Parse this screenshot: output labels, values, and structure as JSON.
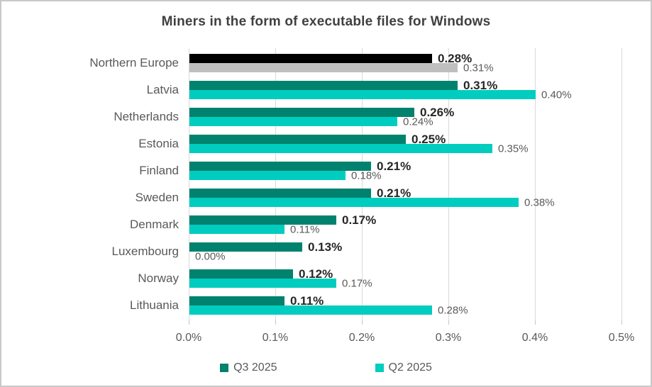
{
  "title": "Miners in the form of executable files for Windows",
  "chart_data": {
    "type": "bar",
    "orientation": "horizontal",
    "title": "Miners in the form of executable files for Windows",
    "categories": [
      "Northern Europe",
      "Latvia",
      "Netherlands",
      "Estonia",
      "Finland",
      "Sweden",
      "Denmark",
      "Luxembourg",
      "Norway",
      "Lithuania"
    ],
    "series": [
      {
        "name": "Q3 2025",
        "legend_color": "#00826E",
        "values": [
          0.28,
          0.31,
          0.26,
          0.25,
          0.21,
          0.21,
          0.17,
          0.13,
          0.12,
          0.11
        ],
        "labels": [
          "0.28%",
          "0.31%",
          "0.26%",
          "0.25%",
          "0.21%",
          "0.21%",
          "0.17%",
          "0.13%",
          "0.12%",
          "0.11%"
        ],
        "bar_colors": [
          "#000000",
          "#00826E",
          "#00826E",
          "#00826E",
          "#00826E",
          "#00826E",
          "#00826E",
          "#00826E",
          "#00826E",
          "#00826E"
        ]
      },
      {
        "name": "Q2 2025",
        "legend_color": "#00CDBF",
        "values": [
          0.31,
          0.4,
          0.24,
          0.35,
          0.18,
          0.38,
          0.11,
          0.0,
          0.17,
          0.28
        ],
        "labels": [
          "0.31%",
          "0.40%",
          "0.24%",
          "0.35%",
          "0.18%",
          "0.38%",
          "0.11%",
          "0.00%",
          "0.17%",
          "0.28%"
        ],
        "bar_colors": [
          "#BFBFBF",
          "#00CDBF",
          "#00CDBF",
          "#00CDBF",
          "#00CDBF",
          "#00CDBF",
          "#00CDBF",
          "#00CDBF",
          "#00CDBF",
          "#00CDBF"
        ]
      }
    ],
    "x_ticks": [
      "0.0%",
      "0.1%",
      "0.2%",
      "0.3%",
      "0.4%",
      "0.5%"
    ],
    "xlim": [
      0,
      0.5
    ],
    "grid": true,
    "legend_position": "bottom"
  },
  "colors": {
    "title": "#404040",
    "category_label": "#595959",
    "q3_data_label": "#262626",
    "q2_data_label": "#595959",
    "gridline": "#d9d9d9",
    "border": "#c9c9c9"
  },
  "legend": {
    "items": [
      {
        "label": "Q3 2025",
        "color": "#00826E"
      },
      {
        "label": "Q2 2025",
        "color": "#00CDBF"
      }
    ]
  }
}
